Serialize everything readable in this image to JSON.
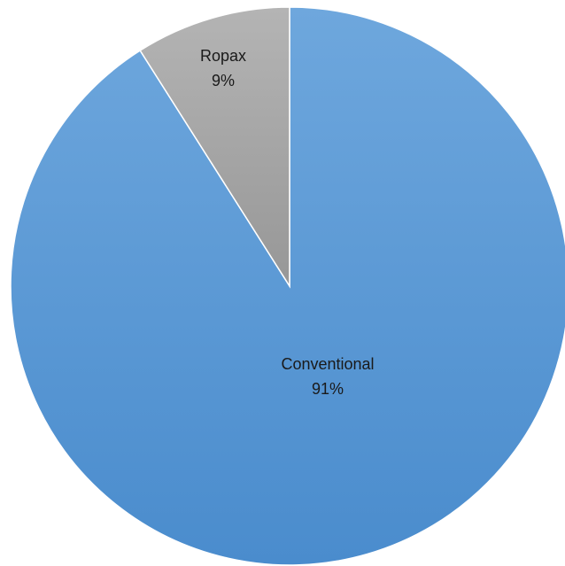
{
  "chart_data": {
    "type": "pie",
    "title": "",
    "slices": [
      {
        "label": "Conventional",
        "value": 91,
        "value_label": "91%",
        "color": "#5b9bd5",
        "color_top": "#6ea7dd",
        "color_bottom": "#4a8ccd"
      },
      {
        "label": "Ropax",
        "value": 9,
        "value_label": "9%",
        "color": "#a5a5a5",
        "color_top": "#b4b4b4",
        "color_bottom": "#979797"
      }
    ],
    "start": "12 o'clock",
    "direction": "clockwise",
    "legend": "none",
    "data_labels": "inside"
  }
}
